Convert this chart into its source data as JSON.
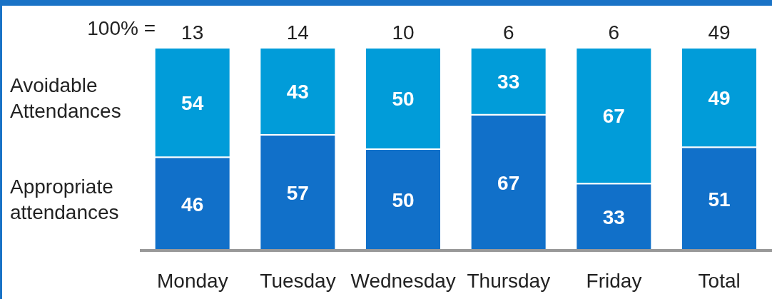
{
  "chart_data": {
    "type": "bar",
    "stacked": true,
    "data_labels": true,
    "categories": [
      "Monday",
      "Tuesday",
      "Wednesday",
      "Thursday",
      "Friday",
      "Total"
    ],
    "series": [
      {
        "name": "Appropriate attendances",
        "color": "#1170c9",
        "values": [
          46,
          57,
          50,
          67,
          33,
          51
        ]
      },
      {
        "name": "Avoidable Attendances",
        "color": "#019cd9",
        "values": [
          54,
          43,
          50,
          33,
          67,
          49
        ]
      }
    ],
    "annotations": [
      "100% =",
      "13",
      "14",
      "10",
      "6",
      "6",
      "49"
    ]
  }
}
